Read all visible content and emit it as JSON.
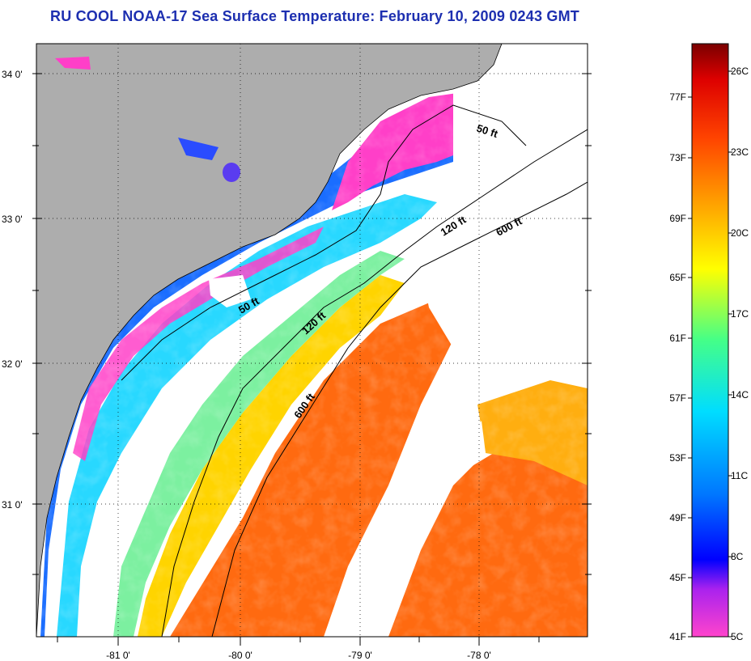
{
  "title": "RU COOL  NOAA-17  Sea Surface Temperature:  February 10, 2009 0243 GMT",
  "map": {
    "lat_labels": [
      "34 0'",
      "33 0'",
      "32 0'",
      "31 0'"
    ],
    "lon_labels": [
      "-81 0'",
      "-80 0'",
      "-79 0'",
      "-78 0'"
    ],
    "contour_labels": [
      "50 ft",
      "120 ft",
      "600 ft",
      "50 ft",
      "120 ft",
      "600 ft"
    ],
    "colors": {
      "land": "#adadad",
      "cloud": "#ffffff",
      "frame": "#000000"
    }
  },
  "colorbar": {
    "fahrenheit_labels": [
      "77F",
      "73F",
      "69F",
      "65F",
      "61F",
      "57F",
      "53F",
      "49F",
      "45F",
      "41F"
    ],
    "celsius_labels": [
      "26C",
      "23C",
      "20C",
      "17C",
      "14C",
      "11C",
      "8C",
      "5C"
    ],
    "stops": [
      "#ff44cc",
      "#aa22ee",
      "#0000ff",
      "#0077ff",
      "#00ddff",
      "#44ff88",
      "#ffff00",
      "#ffaa00",
      "#ff4400",
      "#dd0000",
      "#7a0000"
    ]
  }
}
